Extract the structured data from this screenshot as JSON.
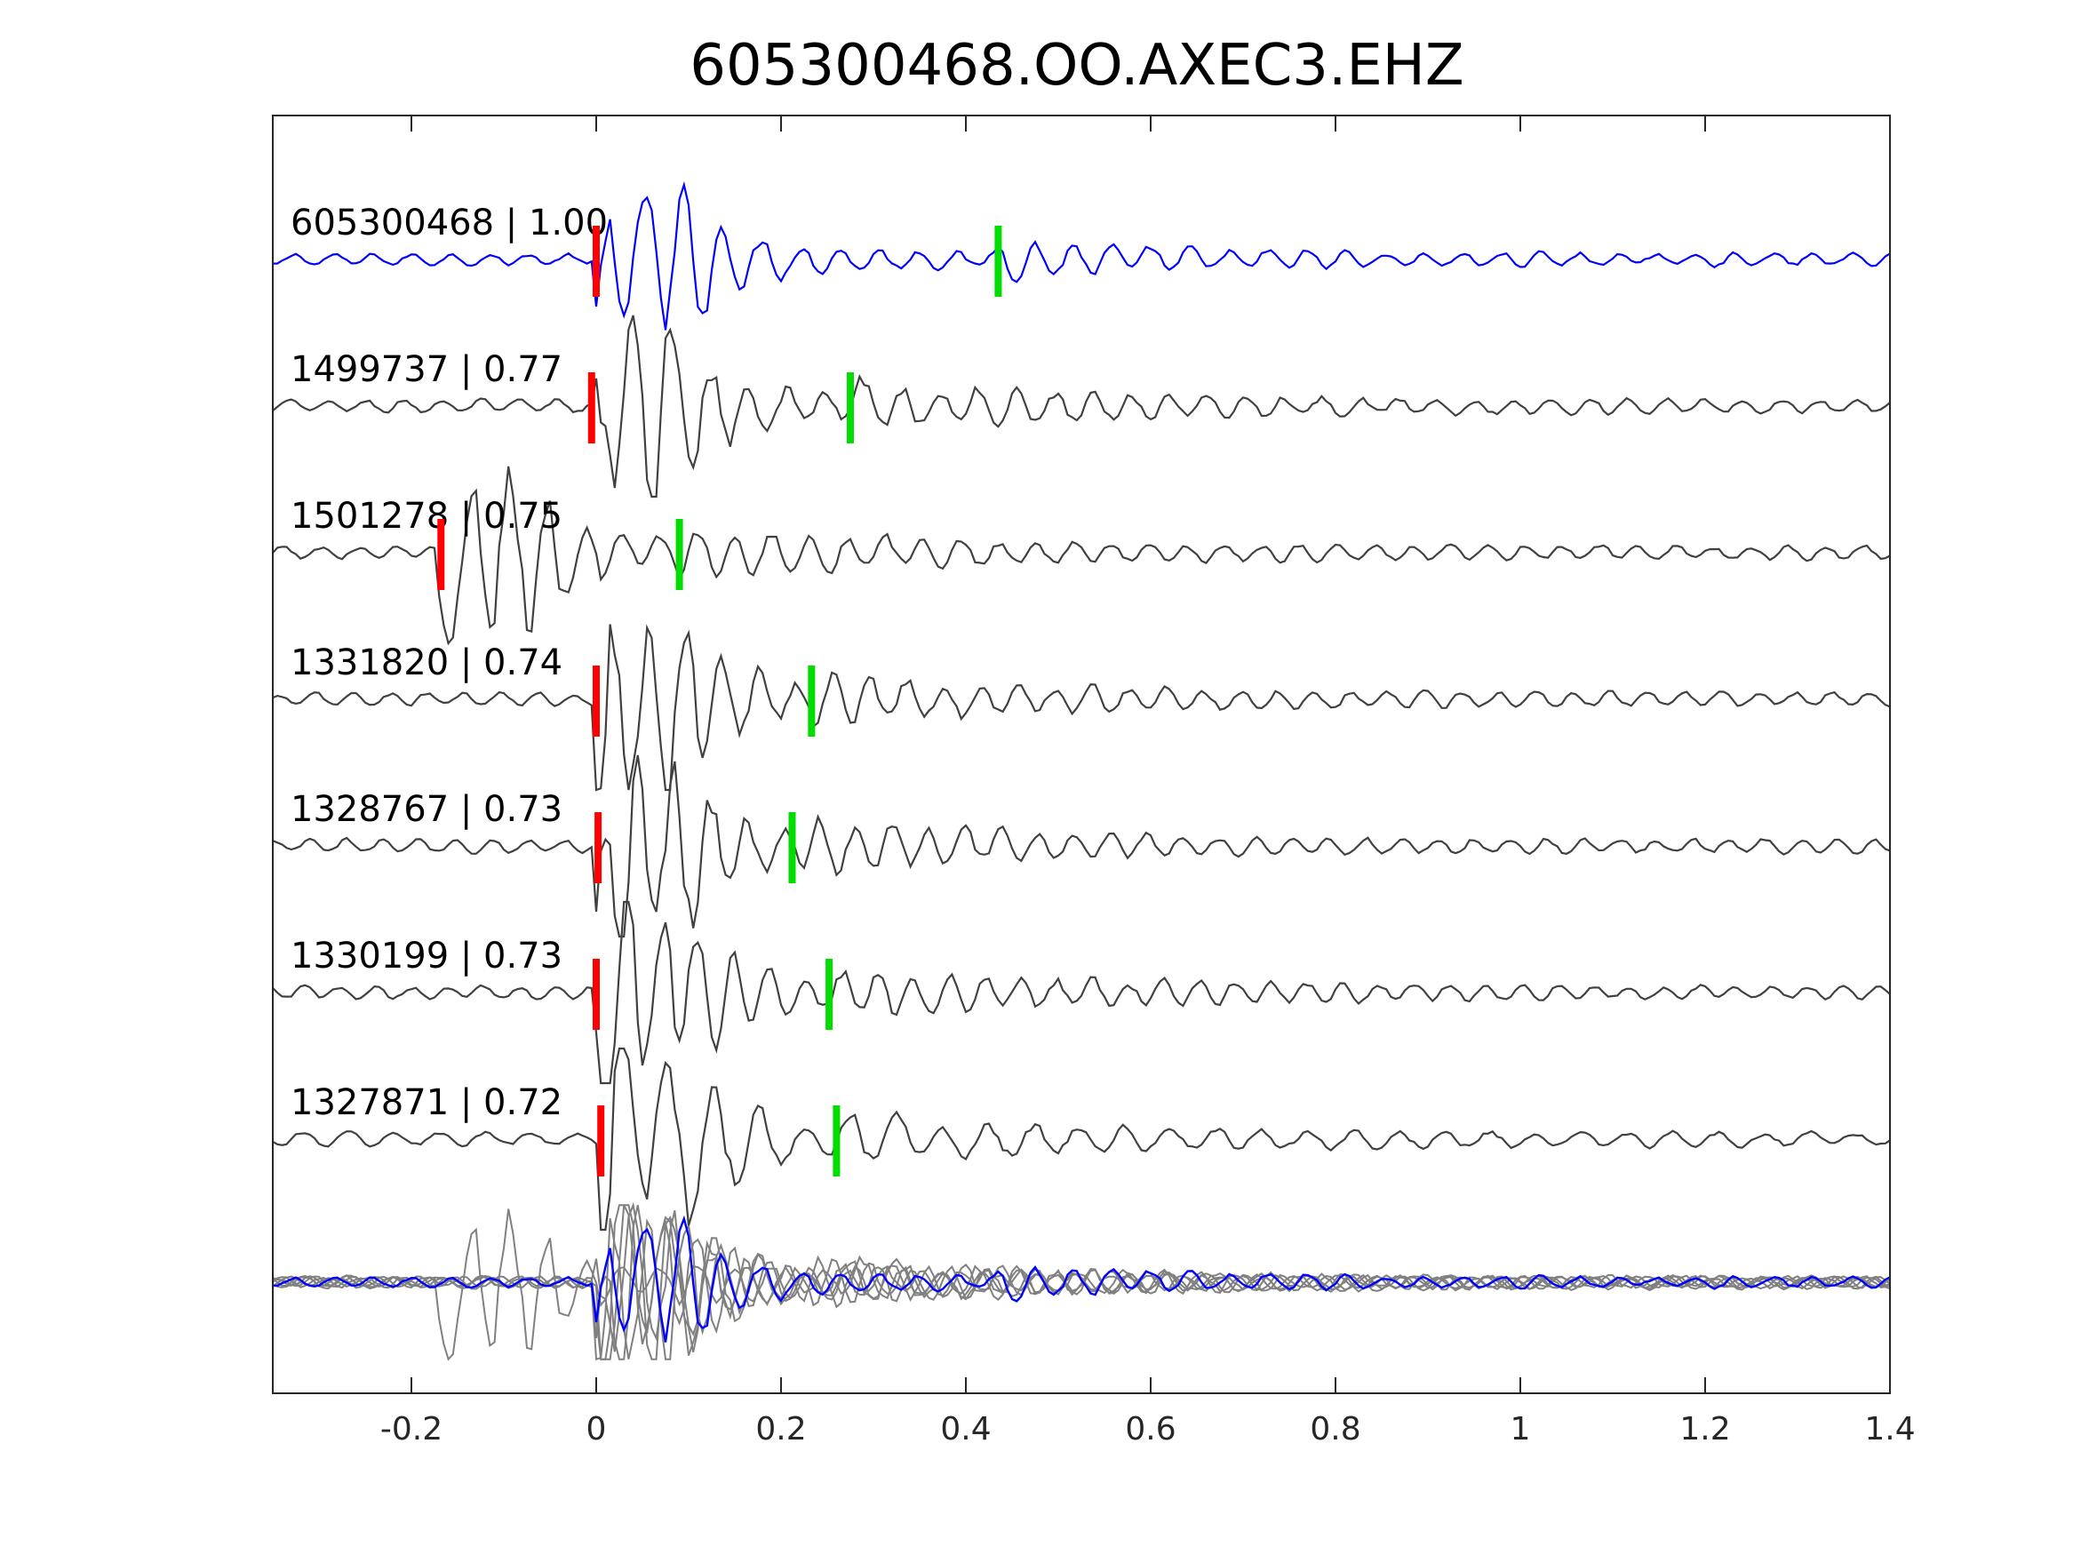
{
  "chart_data": {
    "type": "line",
    "title": "605300468.OO.AXEC3.EHZ",
    "xlabel": "",
    "ylabel": "",
    "xlim": [
      -0.35,
      1.4
    ],
    "xticks": [
      -0.2,
      0,
      0.2,
      0.4,
      0.6,
      0.8,
      1,
      1.2,
      1.4
    ],
    "xtick_labels": [
      "-0.2",
      "0",
      "0.2",
      "0.4",
      "0.6",
      "0.8",
      "1",
      "1.2",
      "1.4"
    ],
    "grid": false,
    "colors": {
      "master_trace": "#0000ff",
      "match_trace": "#404040",
      "overlay_trace": "#808080",
      "p_pick": "#ff0000",
      "s_pick": "#00dd00",
      "axes": "#262626"
    },
    "series": [
      {
        "name": "605300468",
        "score": "1.00",
        "label": "605300468 | 1.00",
        "p_pick": 0.0,
        "s_pick": 0.435,
        "onset": 0.0
      },
      {
        "name": "1499737",
        "score": "0.77",
        "label": "1499737 | 0.77",
        "p_pick": -0.005,
        "s_pick": 0.275,
        "onset": -0.005
      },
      {
        "name": "1501278",
        "score": "0.75",
        "label": "1501278 | 0.75",
        "p_pick": -0.168,
        "s_pick": 0.09,
        "onset": -0.17
      },
      {
        "name": "1331820",
        "score": "0.74",
        "label": "1331820 | 0.74",
        "p_pick": 0.0,
        "s_pick": 0.233,
        "onset": 0.0
      },
      {
        "name": "1328767",
        "score": "0.73",
        "label": "1328767 | 0.73",
        "p_pick": 0.002,
        "s_pick": 0.212,
        "onset": 0.002
      },
      {
        "name": "1330199",
        "score": "0.73",
        "label": "1330199 | 0.73",
        "p_pick": 0.0,
        "s_pick": 0.252,
        "onset": 0.0
      },
      {
        "name": "1327871",
        "score": "0.72",
        "label": "1327871 | 0.72",
        "p_pick": 0.005,
        "s_pick": 0.26,
        "onset": 0.005
      }
    ],
    "stack": {
      "master_index": 0,
      "description_in_image": false
    }
  }
}
